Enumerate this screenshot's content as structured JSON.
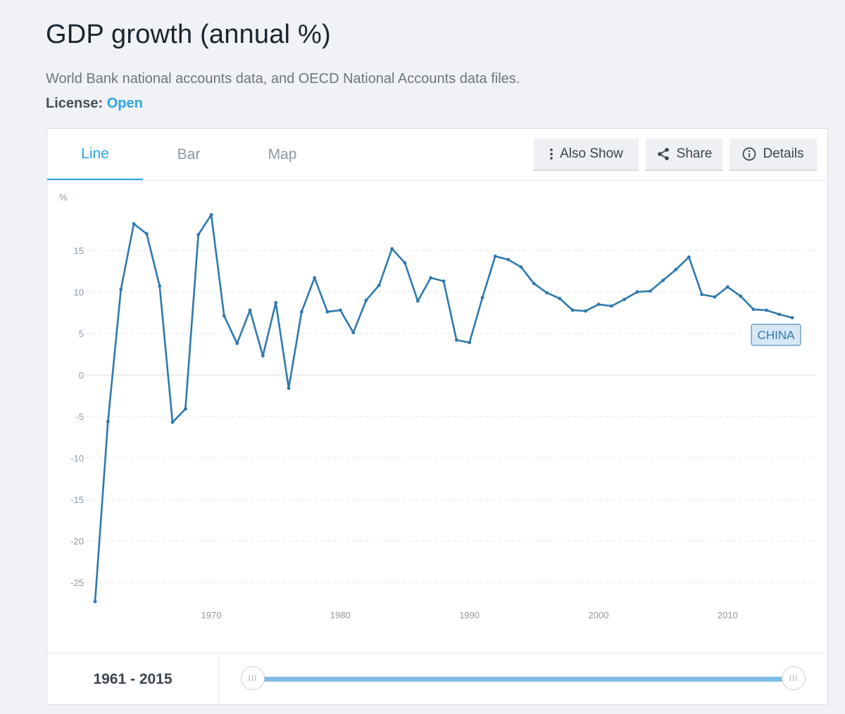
{
  "page": {
    "title": "GDP growth (annual %)",
    "source": "World Bank national accounts data, and OECD National Accounts data files.",
    "license_label": "License:",
    "license_value": "Open"
  },
  "tabs": [
    {
      "label": "Line",
      "active": true
    },
    {
      "label": "Bar",
      "active": false
    },
    {
      "label": "Map",
      "active": false
    }
  ],
  "actions": {
    "also_show": {
      "label": "Also Show",
      "icon": "vertical-dots-icon"
    },
    "share": {
      "label": "Share",
      "icon": "share-icon"
    },
    "details": {
      "label": "Details",
      "icon": "info-icon"
    }
  },
  "range": {
    "label": "1961 - 2015",
    "start": 1961,
    "end": 2015,
    "handle_glyph": "III"
  },
  "colors": {
    "accent": "#2aa5e6",
    "line": "#2e79ad",
    "series_label_bg": "#d7e8f5"
  },
  "chart_data": {
    "type": "line",
    "title": "",
    "ylabel": "%",
    "xlabel": "",
    "ylim": [
      -27.3,
      19.5
    ],
    "y_ticks": [
      -25,
      -20,
      -15,
      -10,
      -5,
      0,
      5,
      10,
      15
    ],
    "x_ticks": [
      1970,
      1980,
      1990,
      2000,
      2010
    ],
    "grid": true,
    "series": [
      {
        "name": "CHINA",
        "x": [
          1961,
          1962,
          1963,
          1964,
          1965,
          1966,
          1967,
          1968,
          1969,
          1970,
          1971,
          1972,
          1973,
          1974,
          1975,
          1976,
          1977,
          1978,
          1979,
          1980,
          1981,
          1982,
          1983,
          1984,
          1985,
          1986,
          1987,
          1988,
          1989,
          1990,
          1991,
          1992,
          1993,
          1994,
          1995,
          1996,
          1997,
          1998,
          1999,
          2000,
          2001,
          2002,
          2003,
          2004,
          2005,
          2006,
          2007,
          2008,
          2009,
          2010,
          2011,
          2012,
          2013,
          2014,
          2015
        ],
        "values": [
          -27.3,
          -5.6,
          10.3,
          18.2,
          17.0,
          10.7,
          -5.7,
          -4.1,
          16.9,
          19.3,
          7.1,
          3.8,
          7.8,
          2.3,
          8.7,
          -1.6,
          7.6,
          11.7,
          7.6,
          7.8,
          5.1,
          9.0,
          10.8,
          15.2,
          13.5,
          8.9,
          11.7,
          11.3,
          4.2,
          3.9,
          9.3,
          14.3,
          13.9,
          13.0,
          11.0,
          9.9,
          9.2,
          7.8,
          7.7,
          8.5,
          8.3,
          9.1,
          10.0,
          10.1,
          11.4,
          12.7,
          14.2,
          9.7,
          9.4,
          10.6,
          9.5,
          7.9,
          7.8,
          7.3,
          6.9
        ]
      }
    ]
  }
}
